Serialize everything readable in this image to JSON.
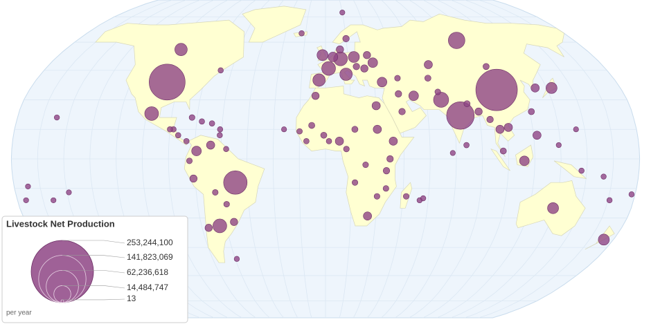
{
  "map": {
    "legend": {
      "title": "Livestock Net Production",
      "unit": "per year",
      "entries": [
        {
          "value": 253244100,
          "label": "253,244,100"
        },
        {
          "value": 141823069,
          "label": "141,823,069"
        },
        {
          "value": 62236618,
          "label": "62,236,618"
        },
        {
          "value": 14484747,
          "label": "14,484,747"
        },
        13
      ]
    },
    "color": "#8e4585",
    "bubbles": [
      {
        "lon": 104,
        "lat": 35,
        "value": 253244100
      },
      {
        "lon": 79,
        "lat": 22,
        "value": 100000000
      },
      {
        "lon": -98,
        "lat": 39,
        "value": 184000000
      },
      {
        "lon": -52,
        "lat": -12,
        "value": 68000000
      },
      {
        "lon": 95,
        "lat": 61,
        "value": 28000000
      },
      {
        "lon": -102,
        "lat": 23,
        "value": 17000000
      },
      {
        "lon": -64,
        "lat": -34,
        "value": 17000000
      },
      {
        "lon": -100,
        "lat": 56,
        "value": 12500000
      },
      {
        "lon": 69,
        "lat": 30,
        "value": 22000000
      },
      {
        "lon": 10,
        "lat": 51,
        "value": 17000000
      },
      {
        "lon": 2,
        "lat": 46,
        "value": 17000000
      },
      {
        "lon": 134,
        "lat": -25,
        "value": 8700000
      },
      {
        "lon": 114,
        "lat": -1,
        "value": 5600000
      },
      {
        "lon": 174,
        "lat": -41,
        "value": 8700000
      },
      {
        "lon": 138,
        "lat": 36,
        "value": 8700000
      },
      {
        "lon": 8,
        "lat": 9,
        "value": 3100000
      },
      {
        "lon": -4,
        "lat": 40,
        "value": 12500000
      },
      {
        "lon": 13,
        "lat": 43,
        "value": 12500000
      },
      {
        "lon": -2,
        "lat": 53,
        "value": 8700000
      },
      {
        "lon": 19,
        "lat": 52,
        "value": 8700000
      },
      {
        "lon": 35,
        "lat": 39,
        "value": 5600000
      },
      {
        "lon": 53,
        "lat": 32,
        "value": 5600000
      },
      {
        "lon": 30,
        "lat": 27,
        "value": 3100000
      },
      {
        "lon": 39,
        "lat": 9,
        "value": 3100000
      },
      {
        "lon": -74,
        "lat": 4,
        "value": 5600000
      },
      {
        "lon": 106,
        "lat": 16,
        "value": 3100000
      },
      {
        "lon": 101,
        "lat": 15,
        "value": 3100000
      },
      {
        "lon": 122,
        "lat": 12,
        "value": 3100000
      },
      {
        "lon": 90,
        "lat": 24,
        "value": 1900000
      },
      {
        "lon": 67,
        "lat": 48,
        "value": 3100000
      },
      {
        "lon": 31,
        "lat": 49,
        "value": 5600000
      },
      {
        "lon": 5,
        "lat": 52,
        "value": 5600000
      },
      {
        "lon": -66,
        "lat": 7,
        "value": 3100000
      },
      {
        "lon": -76,
        "lat": -10,
        "value": 1900000
      },
      {
        "lon": 25,
        "lat": -29,
        "value": 3100000
      },
      {
        "lon": 30,
        "lat": 15,
        "value": 3100000
      },
      {
        "lon": -71,
        "lat": -35,
        "value": 1900000
      },
      {
        "lon": -55,
        "lat": -32,
        "value": 1900000
      },
      {
        "lon": -6,
        "lat": 32,
        "value": 1900000
      },
      {
        "lon": 128,
        "lat": 36,
        "value": 3100000
      },
      {
        "lon": 25,
        "lat": 46,
        "value": 1900000
      },
      {
        "lon": 20,
        "lat": 47,
        "value": 1100000
      },
      {
        "lon": 15,
        "lat": 62,
        "value": 1100000
      },
      {
        "lon": 10,
        "lat": 56,
        "value": 1900000
      },
      {
        "lon": 28,
        "lat": 53,
        "value": 1900000
      },
      {
        "lon": 37,
        "lat": 0,
        "value": 1100000
      },
      {
        "lon": 35,
        "lat": -6,
        "value": 1100000
      },
      {
        "lon": 45,
        "lat": 24,
        "value": 1100000
      },
      {
        "lon": 44,
        "lat": 33,
        "value": 1100000
      },
      {
        "lon": -1,
        "lat": 12,
        "value": 800000
      },
      {
        "lon": -8,
        "lat": 17,
        "value": 800000
      },
      {
        "lon": 17,
        "lat": 15,
        "value": 800000
      },
      {
        "lon": 23,
        "lat": -3,
        "value": 500000
      },
      {
        "lon": 17,
        "lat": -12,
        "value": 500000
      },
      {
        "lon": 30,
        "lat": -19,
        "value": 500000
      },
      {
        "lon": 35,
        "lat": -15,
        "value": 500000
      },
      {
        "lon": 47,
        "lat": -19,
        "value": 500000
      },
      {
        "lon": -15,
        "lat": 14,
        "value": 400000
      },
      {
        "lon": -11,
        "lat": 9,
        "value": 350000
      },
      {
        "lon": 2,
        "lat": 9,
        "value": 350000
      },
      {
        "lon": 12,
        "lat": 5,
        "value": 500000
      },
      {
        "lon": -78,
        "lat": 21,
        "value": 500000
      },
      {
        "lon": -72,
        "lat": 19,
        "value": 350000
      },
      {
        "lon": -66,
        "lat": 18,
        "value": 350000
      },
      {
        "lon": -61,
        "lat": 15,
        "value": 300000
      },
      {
        "lon": -61,
        "lat": 12,
        "value": 300000
      },
      {
        "lon": -88,
        "lat": 15,
        "value": 350000
      },
      {
        "lon": -85,
        "lat": 12,
        "value": 350000
      },
      {
        "lon": -80,
        "lat": 9,
        "value": 350000
      },
      {
        "lon": -90,
        "lat": 15,
        "value": 350000
      },
      {
        "lon": -78,
        "lat": -1,
        "value": 500000
      },
      {
        "lon": -64,
        "lat": -17,
        "value": 500000
      },
      {
        "lon": -58,
        "lat": -23,
        "value": 500000
      },
      {
        "lon": -57,
        "lat": 5,
        "value": 300000
      },
      {
        "lon": -67,
        "lat": 45,
        "value": 300000
      },
      {
        "lon": -18,
        "lat": 65,
        "value": 300000
      },
      {
        "lon": 68,
        "lat": 34,
        "value": 500000
      },
      {
        "lon": 64,
        "lat": 41,
        "value": 800000
      },
      {
        "lon": 45,
        "lat": 41,
        "value": 500000
      },
      {
        "lon": 104,
        "lat": 47,
        "value": 800000
      },
      {
        "lon": 96,
        "lat": 20,
        "value": 1100000
      },
      {
        "lon": 84,
        "lat": 28,
        "value": 800000
      },
      {
        "lon": 81,
        "lat": 7,
        "value": 350000
      },
      {
        "lon": 102,
        "lat": 4,
        "value": 800000
      },
      {
        "lon": 121,
        "lat": 24,
        "value": 800000
      },
      {
        "lon": 147,
        "lat": -6,
        "value": 300000
      },
      {
        "lon": 178,
        "lat": -18,
        "value": 300000
      },
      {
        "lon": 166,
        "lat": -21,
        "value": 300000
      },
      {
        "lon": 160,
        "lat": -9,
        "value": 250000
      },
      {
        "lon": -172,
        "lat": -14,
        "value": 200000
      },
      {
        "lon": -175,
        "lat": -21,
        "value": 200000
      },
      {
        "lon": -159,
        "lat": -21,
        "value": 200000
      },
      {
        "lon": -149,
        "lat": -17,
        "value": 200000
      },
      {
        "lon": -157,
        "lat": 21,
        "value": 250000
      },
      {
        "lon": 55,
        "lat": -21,
        "value": 250000
      },
      {
        "lon": 57,
        "lat": -20,
        "value": 250000
      },
      {
        "lon": -24,
        "lat": 15,
        "value": 200000
      },
      {
        "lon": -59,
        "lat": -51,
        "value": 250000
      },
      {
        "lon": 73,
        "lat": 3,
        "value": 200000
      },
      {
        "lon": 134,
        "lat": 7,
        "value": 200000
      },
      {
        "lon": 145,
        "lat": 15,
        "value": 200000
      },
      {
        "lon": 15,
        "lat": 78,
        "value": 200000
      }
    ]
  }
}
